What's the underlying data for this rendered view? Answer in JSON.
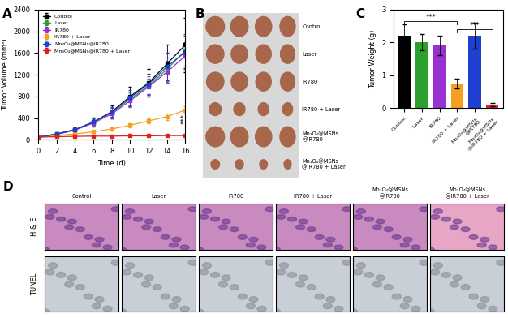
{
  "chart_data": [
    {
      "panel": "A",
      "type": "line",
      "x": [
        0,
        2,
        4,
        6,
        8,
        10,
        12,
        14,
        16
      ],
      "x_label": "Time (d)",
      "y_label": "Tumor Volume (mm³)",
      "xlim": [
        0,
        16
      ],
      "xticks": [
        0,
        2,
        4,
        6,
        8,
        10,
        12,
        14,
        16
      ],
      "ylim": [
        0,
        2400
      ],
      "yticks": [
        0,
        400,
        800,
        1200,
        1600,
        2000,
        2400
      ],
      "legend": "upper left",
      "annotations": [
        {
          "text": "***"
        }
      ],
      "series": [
        {
          "name": "Control",
          "color": "#000000",
          "marker": "square",
          "values": [
            50,
            110,
            190,
            330,
            520,
            800,
            1050,
            1400,
            1750
          ],
          "errors": [
            10,
            20,
            40,
            80,
            120,
            180,
            250,
            350,
            500
          ]
        },
        {
          "name": "Laser",
          "color": "#2ca02c",
          "marker": "square",
          "values": [
            50,
            105,
            185,
            320,
            500,
            750,
            1000,
            1300,
            1650
          ],
          "errors": [
            10,
            15,
            30,
            60,
            90,
            130,
            170,
            220,
            300
          ]
        },
        {
          "name": "IR780",
          "color": "#9b30d0",
          "marker": "square",
          "values": [
            50,
            100,
            180,
            310,
            480,
            720,
            980,
            1250,
            1550
          ],
          "errors": [
            10,
            15,
            30,
            50,
            80,
            110,
            150,
            200,
            250
          ]
        },
        {
          "name": "IR780 + Laser",
          "color": "#f5a020",
          "marker": "square",
          "values": [
            50,
            80,
            110,
            150,
            200,
            270,
            350,
            430,
            550
          ],
          "errors": [
            5,
            10,
            15,
            20,
            30,
            40,
            50,
            60,
            70
          ]
        },
        {
          "name": "Mn₃O₄@MSNs@IR780",
          "color": "#1f3fd0",
          "marker": "square",
          "values": [
            50,
            105,
            185,
            330,
            510,
            780,
            1030,
            1350,
            1620
          ],
          "errors": [
            10,
            15,
            35,
            60,
            90,
            140,
            180,
            250,
            300
          ]
        },
        {
          "name": "Mn₃O₄@MSNs@IR780 + Laser",
          "color": "#e02020",
          "marker": "square",
          "values": [
            50,
            60,
            65,
            70,
            70,
            75,
            75,
            80,
            80
          ],
          "errors": [
            5,
            5,
            8,
            8,
            10,
            10,
            10,
            10,
            12
          ]
        }
      ]
    },
    {
      "panel": "C",
      "type": "bar",
      "categories": [
        "Control",
        "Laser",
        "IR780",
        "IR780 + Laser",
        "Mn₃O₄@MSNs\n@IR780",
        "Mn₃O₄@MSNs\n@IR780 + Laser"
      ],
      "values": [
        2.2,
        2.0,
        1.9,
        0.75,
        2.2,
        0.1
      ],
      "errors": [
        0.35,
        0.25,
        0.3,
        0.15,
        0.4,
        0.05
      ],
      "colors": [
        "#000000",
        "#2ca02c",
        "#9b30d0",
        "#f5a020",
        "#1f3fd0",
        "#e02020"
      ],
      "y_label": "Tumor Weight (g)",
      "ylim": [
        0,
        3
      ],
      "yticks": [
        0,
        1,
        2,
        3
      ],
      "annotations": [
        {
          "from": "Control",
          "to": "IR780 + Laser",
          "text": "***"
        },
        {
          "from": "IR780 + Laser",
          "to": "Mn₃O₄@MSNs\n@IR780 + Laser",
          "text": "***"
        }
      ]
    }
  ],
  "panel_B": {
    "letter": "B",
    "rows": [
      "Control",
      "Laser",
      "IR780",
      "IR780 + Laser",
      "Mn₃O₄@MSNs\n@IR780",
      "Mn₃O₄@MSNs\n@IR780 + Laser"
    ]
  },
  "panel_D": {
    "letter": "D",
    "columns": [
      "Control",
      "Laser",
      "IR780",
      "IR780 + Laser",
      "Mn₃O₄@MSNs\n@IR780",
      "Mn₃O₄@MSNs\n@IR780 + Laser"
    ],
    "rows": [
      "H & E",
      "TUNEL"
    ]
  }
}
